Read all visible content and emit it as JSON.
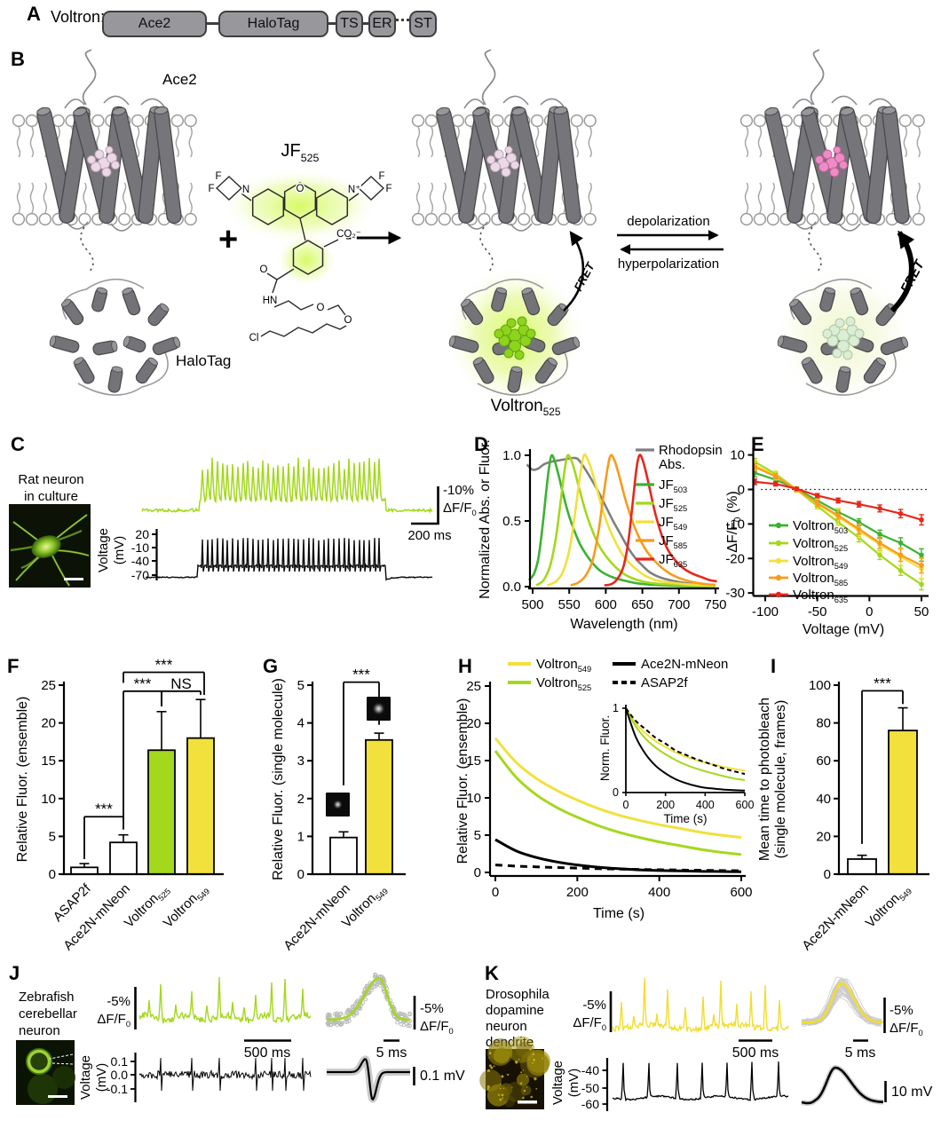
{
  "panel_a": {
    "letter": "A",
    "construct_name": "Voltron:",
    "domains": [
      "Ace2",
      "HaloTag",
      "TS",
      "ER",
      "ST"
    ]
  },
  "panel_b": {
    "letter": "B",
    "ace2_label": "Ace2",
    "halotag_label": "HaloTag",
    "plus_sign": "+",
    "dye_label": "JF_{525}",
    "product_label": "Voltron_{525}",
    "fret_label": "FRET",
    "depolarization_label": "depolarization",
    "hyperpolarization_label": "hyperpolarization",
    "atom_labels": [
      "F",
      "F",
      "N",
      "O",
      "N⁺",
      "F",
      "F",
      "CO₂⁻",
      "O",
      "HN",
      "O",
      "O",
      "Cl"
    ]
  },
  "panel_c": {
    "letter": "C",
    "sample_lines": [
      "Rat neuron",
      "in culture"
    ],
    "voltage_axis_label": [
      "Voltage",
      "(mV)"
    ],
    "voltage_ticks": [
      "20",
      "-10",
      "-40",
      "-70"
    ],
    "fluor_scale": [
      "-10%",
      "ΔF/F_{0}"
    ],
    "time_scale": "200 ms"
  },
  "panel_j": {
    "letter": "J",
    "sample_lines": [
      "Zebrafish",
      "cerebellar",
      "neuron"
    ],
    "voltage_axis_label": [
      "Voltage",
      "(mV)"
    ],
    "voltage_ticks": [
      "0.1",
      "0.0",
      "-0.1"
    ],
    "fluor_scale": [
      "-5%",
      "ΔF/F_{0}"
    ],
    "time_scale_long": "500 ms",
    "time_scale_short": "5 ms",
    "voltage_scale": "0.1 mV"
  },
  "panel_k": {
    "letter": "K",
    "sample_lines": [
      "Drosophila",
      "dopamine",
      "neuron",
      "dendrite"
    ],
    "voltage_axis_label": [
      "Voltage",
      "(mV)"
    ],
    "voltage_ticks": [
      "-40",
      "-50",
      "-60"
    ],
    "fluor_scale": [
      "-5%",
      "ΔF/F_{0}"
    ],
    "time_scale_long": "500 ms",
    "time_scale_short": "5 ms",
    "voltage_scale": "10 mV"
  },
  "chart_data": [
    {
      "id": "D",
      "letter": "D",
      "type": "line",
      "xlabel": "Wavelength (nm)",
      "ylabel": "Normalized Abs. or Fluor.",
      "xlim": [
        492,
        755
      ],
      "ylim": [
        0,
        1.02
      ],
      "xticks": [
        500,
        550,
        600,
        650,
        700,
        750
      ],
      "yticks": [
        0.0,
        0.5,
        1.0
      ],
      "legend_position": "top-right",
      "series": [
        {
          "name": "Rhodopsin Abs.",
          "legend_lines": [
            "Rhodopsin",
            "Abs."
          ],
          "color": "#808080",
          "points": [
            [
              492,
              0.93
            ],
            [
              500,
              0.89
            ],
            [
              508,
              0.9
            ],
            [
              515,
              0.93
            ],
            [
              525,
              0.95
            ],
            [
              535,
              0.96
            ],
            [
              545,
              0.97
            ],
            [
              555,
              0.98
            ],
            [
              562,
              0.97
            ],
            [
              570,
              0.91
            ],
            [
              580,
              0.82
            ],
            [
              590,
              0.72
            ],
            [
              600,
              0.61
            ],
            [
              610,
              0.5
            ],
            [
              620,
              0.4
            ],
            [
              630,
              0.3
            ],
            [
              640,
              0.22
            ],
            [
              650,
              0.16
            ],
            [
              660,
              0.11
            ],
            [
              670,
              0.08
            ],
            [
              680,
              0.06
            ],
            [
              700,
              0.035
            ],
            [
              720,
              0.02
            ],
            [
              750,
              0.01
            ]
          ]
        },
        {
          "name": "JF_{503}",
          "color": "#3cb231",
          "points": [
            [
              495,
              0.05
            ],
            [
              502,
              0.1
            ],
            [
              508,
              0.22
            ],
            [
              514,
              0.48
            ],
            [
              519,
              0.75
            ],
            [
              523,
              0.93
            ],
            [
              526,
              1.0
            ],
            [
              530,
              0.96
            ],
            [
              535,
              0.86
            ],
            [
              541,
              0.72
            ],
            [
              548,
              0.57
            ],
            [
              556,
              0.44
            ],
            [
              565,
              0.32
            ],
            [
              575,
              0.23
            ],
            [
              585,
              0.16
            ],
            [
              595,
              0.11
            ],
            [
              610,
              0.07
            ],
            [
              630,
              0.04
            ],
            [
              650,
              0.02
            ],
            [
              680,
              0.01
            ],
            [
              750,
              0.0
            ]
          ]
        },
        {
          "name": "JF_{525}",
          "color": "#a4d81c",
          "points": [
            [
              505,
              0.01
            ],
            [
              515,
              0.05
            ],
            [
              524,
              0.16
            ],
            [
              532,
              0.38
            ],
            [
              539,
              0.68
            ],
            [
              544,
              0.9
            ],
            [
              548,
              1.0
            ],
            [
              553,
              0.96
            ],
            [
              558,
              0.87
            ],
            [
              565,
              0.72
            ],
            [
              573,
              0.56
            ],
            [
              582,
              0.42
            ],
            [
              592,
              0.3
            ],
            [
              602,
              0.22
            ],
            [
              615,
              0.14
            ],
            [
              630,
              0.08
            ],
            [
              650,
              0.04
            ],
            [
              675,
              0.02
            ],
            [
              710,
              0.01
            ],
            [
              750,
              0.0
            ]
          ]
        },
        {
          "name": "JF_{549}",
          "color": "#f2e03c",
          "points": [
            [
              520,
              0.01
            ],
            [
              532,
              0.04
            ],
            [
              542,
              0.12
            ],
            [
              551,
              0.3
            ],
            [
              559,
              0.6
            ],
            [
              565,
              0.85
            ],
            [
              570,
              1.0
            ],
            [
              575,
              0.97
            ],
            [
              581,
              0.88
            ],
            [
              588,
              0.74
            ],
            [
              596,
              0.58
            ],
            [
              605,
              0.44
            ],
            [
              615,
              0.32
            ],
            [
              626,
              0.22
            ],
            [
              638,
              0.15
            ],
            [
              652,
              0.09
            ],
            [
              668,
              0.05
            ],
            [
              690,
              0.03
            ],
            [
              720,
              0.015
            ],
            [
              750,
              0.01
            ]
          ]
        },
        {
          "name": "JF_{585}",
          "color": "#f79b1d",
          "points": [
            [
              552,
              0.01
            ],
            [
              562,
              0.03
            ],
            [
              572,
              0.08
            ],
            [
              582,
              0.2
            ],
            [
              590,
              0.42
            ],
            [
              597,
              0.7
            ],
            [
              603,
              0.92
            ],
            [
              607,
              1.0
            ],
            [
              612,
              0.96
            ],
            [
              618,
              0.85
            ],
            [
              626,
              0.68
            ],
            [
              635,
              0.52
            ],
            [
              645,
              0.38
            ],
            [
              656,
              0.27
            ],
            [
              668,
              0.19
            ],
            [
              682,
              0.12
            ],
            [
              698,
              0.07
            ],
            [
              715,
              0.04
            ],
            [
              735,
              0.02
            ],
            [
              750,
              0.015
            ]
          ]
        },
        {
          "name": "JF_{635}",
          "color": "#e5281c",
          "points": [
            [
              598,
              0.01
            ],
            [
              608,
              0.02
            ],
            [
              616,
              0.06
            ],
            [
              624,
              0.15
            ],
            [
              631,
              0.35
            ],
            [
              637,
              0.65
            ],
            [
              642,
              0.9
            ],
            [
              646,
              1.0
            ],
            [
              650,
              0.97
            ],
            [
              655,
              0.87
            ],
            [
              661,
              0.72
            ],
            [
              668,
              0.55
            ],
            [
              676,
              0.4
            ],
            [
              685,
              0.28
            ],
            [
              695,
              0.2
            ],
            [
              706,
              0.14
            ],
            [
              718,
              0.1
            ],
            [
              732,
              0.07
            ],
            [
              742,
              0.05
            ],
            [
              752,
              0.04
            ]
          ]
        }
      ]
    },
    {
      "id": "E",
      "letter": "E",
      "type": "line-error",
      "xlabel": "Voltage (mV)",
      "ylabel": "ΔF/F_{0} (%)",
      "xlim": [
        -115,
        55
      ],
      "ylim": [
        -30,
        10
      ],
      "xticks": [
        -100,
        -50,
        0,
        50
      ],
      "yticks": [
        10,
        0,
        -10,
        -20,
        -30
      ],
      "zero_line": true,
      "x": [
        -110,
        -90,
        -70,
        -50,
        -30,
        -10,
        10,
        30,
        50
      ],
      "series": [
        {
          "name": "Voltron_{503}",
          "color": "#3cb231",
          "values": [
            4.8,
            2.8,
            0.2,
            -3.2,
            -6.5,
            -9.5,
            -13,
            -15.5,
            -19
          ],
          "errors": [
            1.2,
            0.8,
            0.5,
            0.7,
            0.9,
            1.0,
            1.2,
            1.5,
            1.8
          ]
        },
        {
          "name": "Voltron_{525}",
          "color": "#a4d81c",
          "values": [
            8,
            4.5,
            0,
            -4.8,
            -9.5,
            -14,
            -19,
            -23.5,
            -27.5
          ],
          "errors": [
            1.0,
            0.8,
            0.5,
            0.8,
            1.0,
            1.2,
            1.3,
            1.4,
            1.6
          ]
        },
        {
          "name": "Voltron_{549}",
          "color": "#f2e03c",
          "values": [
            7,
            4,
            0,
            -4.2,
            -8,
            -12,
            -16,
            -19.5,
            -23
          ],
          "errors": [
            1.5,
            1.2,
            0.8,
            1.5,
            2.5,
            2.0,
            2.2,
            2.5,
            3.0
          ]
        },
        {
          "name": "Voltron_{585}",
          "color": "#f79b1d",
          "values": [
            6.5,
            3.8,
            0,
            -4,
            -7.5,
            -11.5,
            -15.5,
            -19,
            -22
          ],
          "errors": [
            1.0,
            0.8,
            0.6,
            0.9,
            1.1,
            1.5,
            1.6,
            1.8,
            2.2
          ]
        },
        {
          "name": "Voltron_{635}",
          "color": "#e5281c",
          "values": [
            2.2,
            1.6,
            0.2,
            -1.8,
            -3.2,
            -4.3,
            -5.5,
            -7,
            -8.8
          ],
          "errors": [
            0.8,
            0.6,
            0.4,
            0.6,
            0.7,
            0.8,
            1.0,
            1.2,
            1.5
          ]
        }
      ]
    },
    {
      "id": "F",
      "letter": "F",
      "type": "bar",
      "ylabel": "Relative Fluor. (ensemble)",
      "ylim": [
        0,
        25
      ],
      "yticks": [
        0,
        5,
        10,
        15,
        20,
        25
      ],
      "categories": [
        "ASAP2f",
        "Ace2N-mNeon",
        "Voltron_{525}",
        "Voltron_{549}"
      ],
      "values": [
        0.9,
        4.2,
        16.4,
        18.0
      ],
      "errors": [
        0.5,
        1.0,
        5.1,
        5.1
      ],
      "colors": [
        "#ffffff",
        "#ffffff",
        "#a4d81c",
        "#f2e03c"
      ],
      "significance": [
        {
          "from": 0,
          "to": 1,
          "label": "***",
          "bracket_y": 7.6,
          "legs": [
            2.0,
            5.9
          ]
        },
        {
          "from": 1,
          "to": 2,
          "label": "***",
          "bracket_y": 24.2,
          "legs": [
            7.0,
            22.2
          ]
        },
        {
          "from": 2,
          "to": 3,
          "label": "NS",
          "bracket_y": 24.2,
          "legs": [
            22.2,
            23.7
          ]
        },
        {
          "from": 1,
          "to": 3,
          "label": "***",
          "bracket_y": 26.7,
          "legs": [
            25.3,
            23.7
          ],
          "dx": [
            0,
            4
          ]
        }
      ]
    },
    {
      "id": "G",
      "letter": "G",
      "type": "bar",
      "ylabel": "Relative Fluor. (single molecule)",
      "ylim": [
        0,
        5
      ],
      "yticks": [
        0,
        1,
        2,
        3,
        4,
        5
      ],
      "categories": [
        "Ace2N-mNeon",
        "Voltron_{549}"
      ],
      "values": [
        0.97,
        3.55
      ],
      "errors": [
        0.15,
        0.18
      ],
      "colors": [
        "#ffffff",
        "#f2e03c"
      ],
      "significance": [
        {
          "from": 0,
          "to": 1,
          "label": "***",
          "bracket_y": 5.08,
          "legs": [
            2.35,
            3.95
          ]
        }
      ]
    },
    {
      "id": "H",
      "letter": "H",
      "type": "line",
      "xlabel": "Time (s)",
      "ylabel": "Relative Fluor. (ensemble)",
      "xlim": [
        0,
        600
      ],
      "ylim": [
        0,
        25
      ],
      "xticks": [
        0,
        200,
        400,
        600
      ],
      "yticks": [
        0,
        5,
        10,
        15,
        20,
        25
      ],
      "x": [
        0,
        50,
        100,
        150,
        200,
        250,
        300,
        350,
        400,
        450,
        500,
        550,
        600
      ],
      "series": [
        {
          "name": "Voltron_{549}",
          "color": "#f2e03c",
          "dash": false,
          "values": [
            18,
            14.8,
            12.6,
            11,
            9.7,
            8.6,
            7.7,
            7,
            6.4,
            5.9,
            5.4,
            5,
            4.7
          ]
        },
        {
          "name": "Voltron_{525}",
          "color": "#a4d81c",
          "dash": false,
          "values": [
            16.3,
            12.8,
            10.4,
            8.7,
            7.4,
            6.3,
            5.4,
            4.7,
            4.1,
            3.6,
            3.1,
            2.7,
            2.4
          ]
        },
        {
          "name": "Ace2N-mNeon",
          "color": "#000000",
          "dash": false,
          "values": [
            4.4,
            2.9,
            2,
            1.4,
            1,
            0.7,
            0.5,
            0.35,
            0.25,
            0.2,
            0.15,
            0.12,
            0.1
          ]
        },
        {
          "name": "ASAP2f",
          "color": "#000000",
          "dash": true,
          "values": [
            1,
            0.85,
            0.75,
            0.65,
            0.58,
            0.5,
            0.45,
            0.4,
            0.36,
            0.32,
            0.28,
            0.25,
            0.22
          ]
        }
      ],
      "inset": {
        "xlabel": "Time (s)",
        "ylabel": "Norm. Fluor.",
        "xticks": [
          0,
          200,
          400,
          600
        ],
        "yticks": [
          0,
          1
        ],
        "note": "series normalized to initial value"
      }
    },
    {
      "id": "I",
      "letter": "I",
      "type": "bar",
      "ylabel_lines": [
        "Mean time to photobleach",
        "(single molecule, frames)"
      ],
      "ylim": [
        0,
        100
      ],
      "yticks": [
        0,
        20,
        40,
        60,
        80,
        100
      ],
      "categories": [
        "Ace2N-mNeon",
        "Voltron_{549}"
      ],
      "values": [
        8,
        76
      ],
      "errors": [
        2,
        12
      ],
      "colors": [
        "#ffffff",
        "#f2e03c"
      ],
      "significance": [
        {
          "from": 0,
          "to": 1,
          "label": "***",
          "bracket_y": 97,
          "legs": [
            16,
            90
          ]
        }
      ]
    }
  ]
}
